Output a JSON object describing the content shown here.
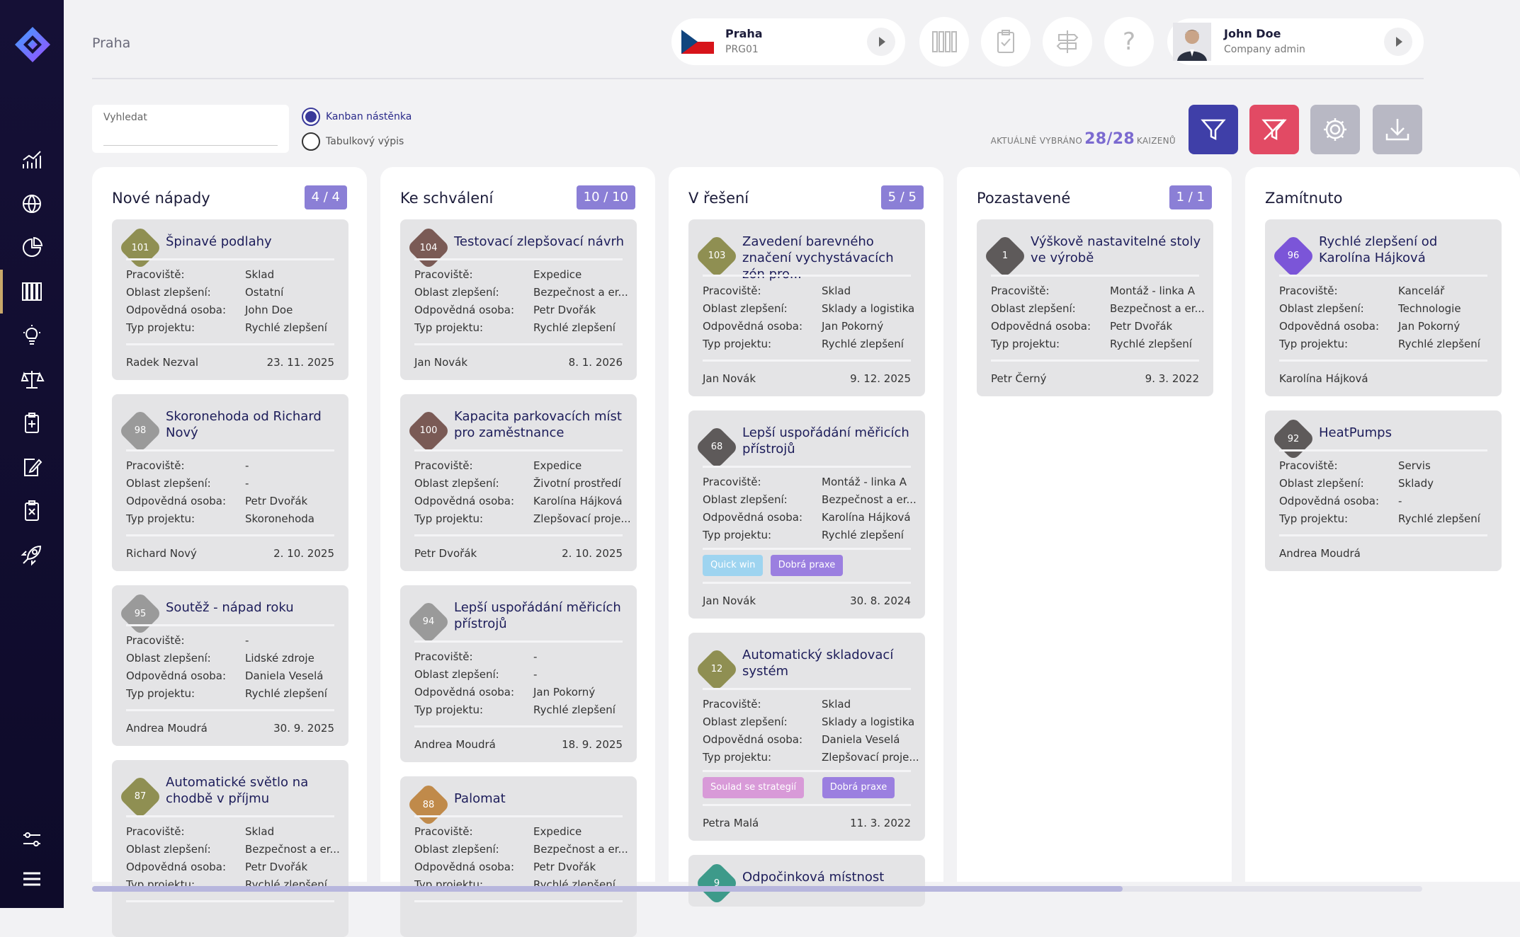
{
  "header": {
    "page_title": "Praha",
    "location": {
      "name": "Praha",
      "code": "PRG01"
    },
    "user": {
      "name": "John Doe",
      "role": "Company admin"
    }
  },
  "toolbar": {
    "search_label": "Vyhledat",
    "view_options": [
      {
        "label": "Kanban nástěnka",
        "selected": true
      },
      {
        "label": "Tabulkový výpis",
        "selected": false
      }
    ],
    "selected_prefix": "AKTUÁLNĚ VYBRÁNO",
    "selected_count": "28/28",
    "selected_suffix": "KAIZENŮ"
  },
  "labels": {
    "workplace": "Pracoviště:",
    "area": "Oblast zlepšení:",
    "owner": "Odpovědná osoba:",
    "type": "Typ projektu:"
  },
  "columns": [
    {
      "title": "Nové nápady",
      "badge": "4 / 4",
      "cards": [
        {
          "num": "101",
          "color": "#8f8f52",
          "title": "Špinavé podlahy",
          "lines": 1,
          "workplace": "Sklad",
          "area": "Ostatní",
          "owner": "John Doe",
          "type": "Rychlé zlepšení",
          "author": "Radek Nezval",
          "date": "23. 11. 2025",
          "tags": []
        },
        {
          "num": "98",
          "color": "#9a9a9a",
          "title": "Skoronehoda od Richard Nový",
          "lines": 2,
          "workplace": "-",
          "area": "-",
          "owner": "Petr Dvořák",
          "type": "Skoronehoda",
          "author": "Richard Nový",
          "date": "2. 10. 2025",
          "tags": []
        },
        {
          "num": "95",
          "color": "#9a9a9a",
          "title": "Soutěž - nápad roku",
          "lines": 1,
          "workplace": "-",
          "area": "Lidské zdroje",
          "owner": "Daniela Veselá",
          "type": "Rychlé zlepšení",
          "author": "Andrea Moudrá",
          "date": "30. 9. 2025",
          "tags": []
        },
        {
          "num": "87",
          "color": "#8f8f52",
          "title": "Automatické světlo na chodbě v příjmu",
          "lines": 2,
          "workplace": "Sklad",
          "area": "Bezpečnost a er...",
          "owner": "Petr Dvořák",
          "type": "Rychlé zlepšení",
          "author": "",
          "date": "",
          "tags": []
        }
      ]
    },
    {
      "title": "Ke schválení",
      "badge": "10 / 10",
      "cards": [
        {
          "num": "104",
          "color": "#7a5a55",
          "title": "Testovací zlepšovací návrh",
          "lines": 1,
          "workplace": "Expedice",
          "area": "Bezpečnost a er...",
          "owner": "Petr Dvořák",
          "type": "Rychlé zlepšení",
          "author": "Jan Novák",
          "date": "8. 1. 2026",
          "tags": []
        },
        {
          "num": "100",
          "color": "#7a5a55",
          "title": "Kapacita parkovacích míst pro zaměstnance",
          "lines": 2,
          "workplace": "Expedice",
          "area": "Životní prostředí",
          "owner": "Karolína Hájková",
          "type": "Zlepšovací proje...",
          "author": "Petr Dvořák",
          "date": "2. 10. 2025",
          "tags": []
        },
        {
          "num": "94",
          "color": "#9a9a9a",
          "title": "Lepší uspořádání měřicích přístrojů",
          "lines": 2,
          "workplace": "-",
          "area": "-",
          "owner": "Jan Pokorný",
          "type": "Rychlé zlepšení",
          "author": "Andrea Moudrá",
          "date": "18. 9. 2025",
          "tags": []
        },
        {
          "num": "88",
          "color": "#c08a4a",
          "title": "Palomat",
          "lines": 1,
          "workplace": "Expedice",
          "area": "Bezpečnost a er...",
          "owner": "Petr Dvořák",
          "type": "Rychlé zlepšení",
          "author": "",
          "date": "",
          "tags": []
        }
      ]
    },
    {
      "title": "V řešení",
      "badge": "5 / 5",
      "cards": [
        {
          "num": "103",
          "color": "#8f8f52",
          "title": "Zavedení barevného značení vychystávacích zón pro...",
          "lines": 2,
          "workplace": "Sklad",
          "area": "Sklady a logistika",
          "owner": "Jan Pokorný",
          "type": "Rychlé zlepšení",
          "author": "Jan Novák",
          "date": "9. 12. 2025",
          "tags": []
        },
        {
          "num": "68",
          "color": "#5e5a5a",
          "title": "Lepší uspořádání měřicích přístrojů",
          "lines": 2,
          "workplace": "Montáž - linka A",
          "area": "Bezpečnost a er...",
          "owner": "Karolína Hájková",
          "type": "Rychlé zlepšení",
          "author": "Jan Novák",
          "date": "30. 8. 2024",
          "tags": [
            {
              "label": "Quick win",
              "color": "#9ed4f0"
            },
            {
              "label": "Dobrá praxe",
              "color": "#9b7fe0"
            }
          ]
        },
        {
          "num": "12",
          "color": "#8f8f52",
          "title": "Automatický skladovací systém",
          "lines": 2,
          "workplace": "Sklad",
          "area": "Sklady a logistika",
          "owner": "Daniela Veselá",
          "type": "Zlepšovací proje...",
          "author": "Petra Malá",
          "date": "11. 3. 2022",
          "tags": [
            {
              "label": "Soulad se strategií",
              "color": "#d89ad8"
            },
            {
              "label": "Dobrá praxe",
              "color": "#9b7fe0"
            }
          ]
        },
        {
          "num": "9",
          "color": "#3d9a8a",
          "title": "Odpočinková místnost",
          "lines": 1,
          "workplace": "",
          "area": "",
          "owner": "",
          "type": "",
          "author": "",
          "date": "",
          "tags": []
        }
      ]
    },
    {
      "title": "Pozastavené",
      "badge": "1 / 1",
      "cards": [
        {
          "num": "1",
          "color": "#5e5a5a",
          "title": "Výškově nastavitelné stoly ve výrobě",
          "lines": 2,
          "workplace": "Montáž - linka A",
          "area": "Bezpečnost a er...",
          "owner": "Petr Dvořák",
          "type": "Rychlé zlepšení",
          "author": "Petr Černý",
          "date": "9. 3. 2022",
          "tags": []
        }
      ]
    },
    {
      "title": "Zamítnuto",
      "badge": "",
      "cards": [
        {
          "num": "96",
          "color": "#7b55d8",
          "title": "Rychlé zlepšení od Karolína Hájková",
          "lines": 2,
          "workplace": "Kancelář",
          "area": "Technologie",
          "owner": "Jan Pokorný",
          "type": "Rychlé zlepšení",
          "author": "Karolína Hájková",
          "date": "",
          "tags": []
        },
        {
          "num": "92",
          "color": "#5e5a5a",
          "title": "HeatPumps",
          "lines": 1,
          "workplace": "Servis",
          "area": "Sklady",
          "owner": "-",
          "type": "Rychlé zlepšení",
          "author": "Andrea Moudrá",
          "date": "",
          "tags": []
        }
      ]
    }
  ]
}
